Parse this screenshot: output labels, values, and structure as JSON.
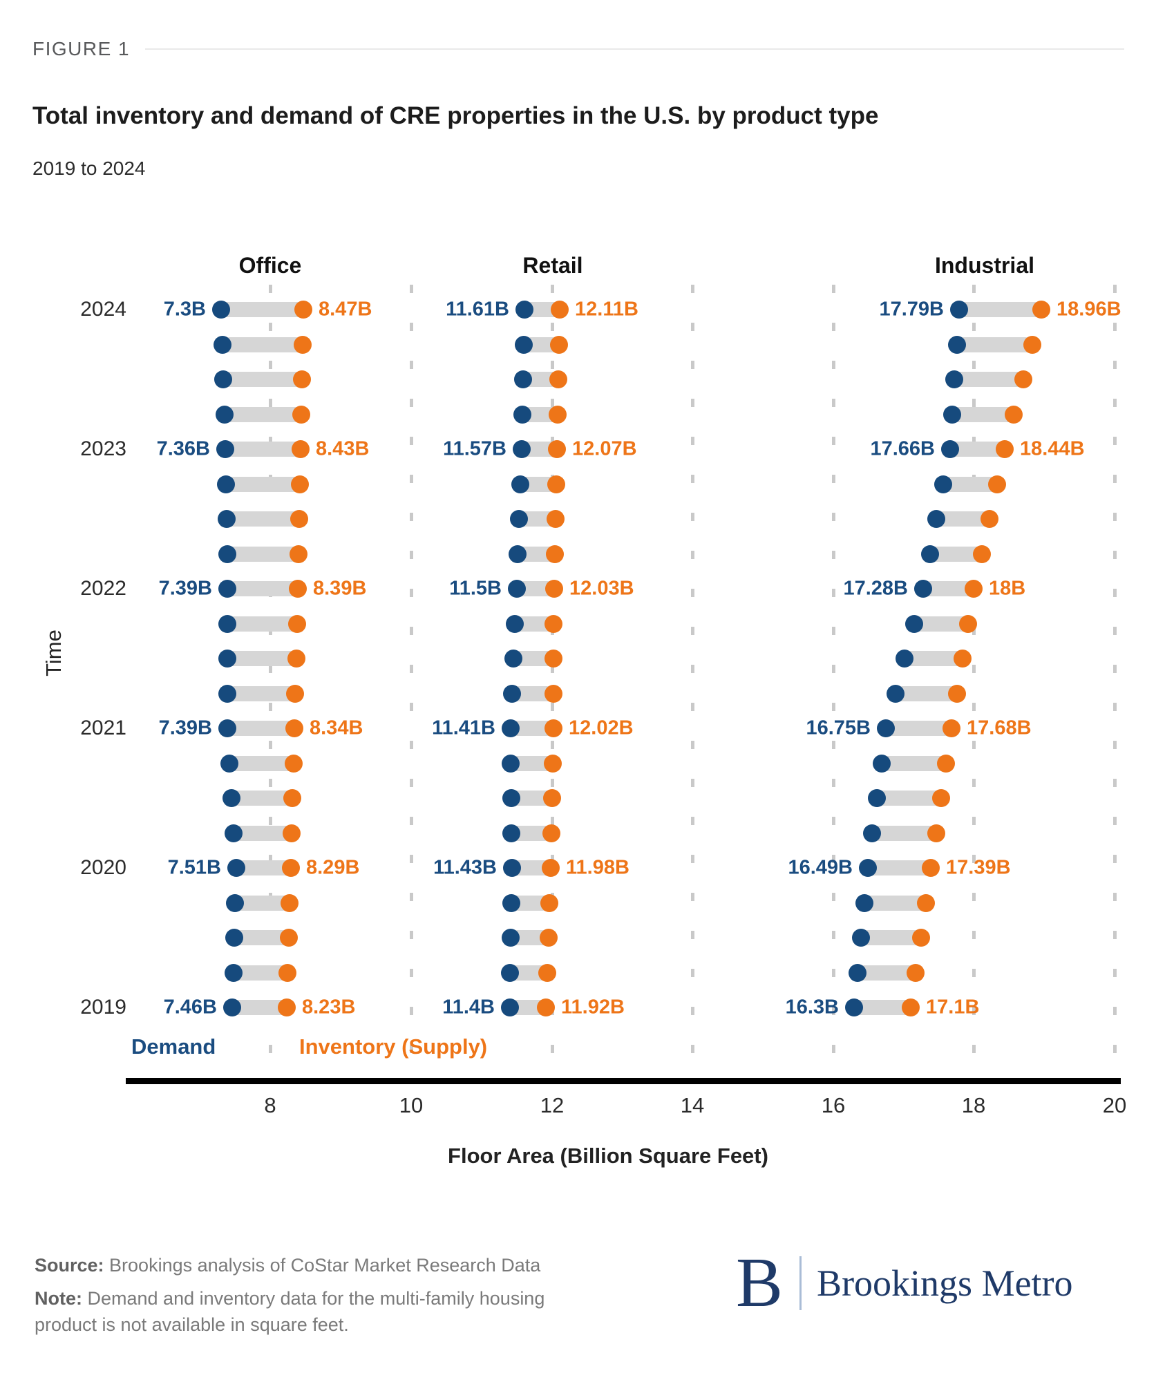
{
  "figure_label": "FIGURE 1",
  "title": "Total inventory and demand of CRE properties in the U.S. by product type",
  "subtitle": "2019 to 2024",
  "legend": {
    "demand": "Demand",
    "inventory": "Inventory (Supply)"
  },
  "colors": {
    "demand_dot": "#164a7d",
    "inventory_dot": "#ee7518",
    "demand_text": "#1a4c80",
    "inventory_text": "#ee7518",
    "connector_bar": "#d6d6d6",
    "gridline": "#c9c9c9",
    "axis": "#000000",
    "logo_navy": "#1f3a68"
  },
  "chart_data": {
    "type": "dumbbell",
    "title": "Total inventory and demand of CRE properties in the U.S. by product type",
    "subtitle": "2019 to 2024",
    "x_axis": {
      "label": "Floor Area (Billion Square Feet)",
      "ticks": [
        8,
        10,
        12,
        14,
        16,
        18,
        20
      ],
      "range": [
        8,
        20
      ],
      "gridlines": "dashed"
    },
    "y_axis": {
      "label": "Time",
      "years_top_to_bottom": [
        2024,
        2023,
        2022,
        2021,
        2020,
        2019
      ],
      "unlabeled_quarter_rows_between_years": 3
    },
    "series_names": [
      "Demand",
      "Inventory (Supply)"
    ],
    "panels": [
      {
        "label": "Office",
        "annual": [
          {
            "year": 2024,
            "demand": 7.3,
            "inventory": 8.47,
            "demand_label": "7.3B",
            "inventory_label": "8.47B"
          },
          {
            "year": 2023,
            "demand": 7.36,
            "inventory": 8.43,
            "demand_label": "7.36B",
            "inventory_label": "8.43B"
          },
          {
            "year": 2022,
            "demand": 7.39,
            "inventory": 8.39,
            "demand_label": "7.39B",
            "inventory_label": "8.39B"
          },
          {
            "year": 2021,
            "demand": 7.39,
            "inventory": 8.34,
            "demand_label": "7.39B",
            "inventory_label": "8.34B"
          },
          {
            "year": 2020,
            "demand": 7.51,
            "inventory": 8.29,
            "demand_label": "7.51B",
            "inventory_label": "8.29B"
          },
          {
            "year": 2019,
            "demand": 7.46,
            "inventory": 8.23,
            "demand_label": "7.46B",
            "inventory_label": "8.23B"
          }
        ]
      },
      {
        "label": "Retail",
        "annual": [
          {
            "year": 2024,
            "demand": 11.61,
            "inventory": 12.11,
            "demand_label": "11.61B",
            "inventory_label": "12.11B"
          },
          {
            "year": 2023,
            "demand": 11.57,
            "inventory": 12.07,
            "demand_label": "11.57B",
            "inventory_label": "12.07B"
          },
          {
            "year": 2022,
            "demand": 11.5,
            "inventory": 12.03,
            "demand_label": "11.5B",
            "inventory_label": "12.03B"
          },
          {
            "year": 2021,
            "demand": 11.41,
            "inventory": 12.02,
            "demand_label": "11.41B",
            "inventory_label": "12.02B"
          },
          {
            "year": 2020,
            "demand": 11.43,
            "inventory": 11.98,
            "demand_label": "11.43B",
            "inventory_label": "11.98B"
          },
          {
            "year": 2019,
            "demand": 11.4,
            "inventory": 11.92,
            "demand_label": "11.4B",
            "inventory_label": "11.92B"
          }
        ]
      },
      {
        "label": "Industrial",
        "annual": [
          {
            "year": 2024,
            "demand": 17.79,
            "inventory": 18.96,
            "demand_label": "17.79B",
            "inventory_label": "18.96B"
          },
          {
            "year": 2023,
            "demand": 17.66,
            "inventory": 18.44,
            "demand_label": "17.66B",
            "inventory_label": "18.44B"
          },
          {
            "year": 2022,
            "demand": 17.28,
            "inventory": 18.0,
            "demand_label": "17.28B",
            "inventory_label": "18B"
          },
          {
            "year": 2021,
            "demand": 16.75,
            "inventory": 17.68,
            "demand_label": "16.75B",
            "inventory_label": "17.68B"
          },
          {
            "year": 2020,
            "demand": 16.49,
            "inventory": 17.39,
            "demand_label": "16.49B",
            "inventory_label": "17.39B"
          },
          {
            "year": 2019,
            "demand": 16.3,
            "inventory": 17.1,
            "demand_label": "16.3B",
            "inventory_label": "17.1B"
          }
        ]
      }
    ]
  },
  "footer": {
    "source_label": "Source:",
    "source_text": " Brookings analysis of CoStar Market Research Data",
    "note_label": "Note:",
    "note_text": " Demand and inventory data for the multi-family housing product is not available in square feet."
  },
  "logo": {
    "letter": "B",
    "text": "Brookings Metro"
  }
}
